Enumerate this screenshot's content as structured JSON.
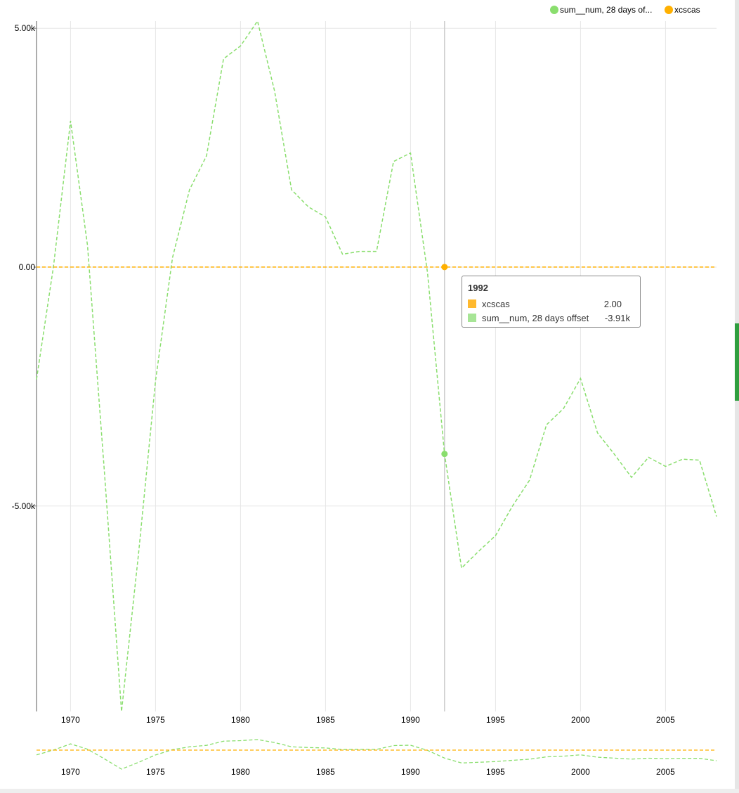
{
  "legend": [
    {
      "label": "sum__num, 28 days of...",
      "color": "#8ade6e",
      "icon": "circle-icon"
    },
    {
      "label": "xcscas",
      "color": "#ffb000",
      "icon": "circle-icon"
    }
  ],
  "tooltip": {
    "title": "1992",
    "rows": [
      {
        "name": "xcscas",
        "value": "2.00",
        "color": "#ffb92e"
      },
      {
        "name": "sum__num, 28 days offset",
        "value": "-3.91k",
        "color": "#a7e596"
      }
    ]
  },
  "chart_data": {
    "type": "line",
    "x": [
      1968,
      1969,
      1970,
      1971,
      1972,
      1973,
      1974,
      1975,
      1976,
      1977,
      1978,
      1979,
      1980,
      1981,
      1982,
      1983,
      1984,
      1985,
      1986,
      1987,
      1988,
      1989,
      1990,
      1991,
      1992,
      1993,
      1994,
      1995,
      1996,
      1997,
      1998,
      1999,
      2000,
      2001,
      2002,
      2003,
      2004,
      2005,
      2006,
      2007,
      2008
    ],
    "series": [
      {
        "name": "sum__num, 28 days offset",
        "color": "#8ade6e",
        "style": "dashed",
        "values": [
          -2350,
          20,
          3060,
          450,
          -4320,
          -9300,
          -6000,
          -2380,
          200,
          1620,
          2330,
          4360,
          4630,
          5150,
          3690,
          1620,
          1260,
          1050,
          270,
          330,
          330,
          2210,
          2390,
          -120,
          -3910,
          -6300,
          -5950,
          -5620,
          -5000,
          -4460,
          -3300,
          -2960,
          -2330,
          -3470,
          -3920,
          -4400,
          -3980,
          -4170,
          -4020,
          -4040,
          -5220
        ]
      },
      {
        "name": "xcscas",
        "color": "#ffb000",
        "style": "dashed",
        "values": [
          2,
          2,
          2,
          2,
          2,
          2,
          2,
          2,
          2,
          2,
          2,
          2,
          2,
          2,
          2,
          2,
          2,
          2,
          2,
          2,
          2,
          2,
          2,
          2,
          2,
          2,
          2,
          2,
          2,
          2,
          2,
          2,
          2,
          2,
          2,
          2,
          2,
          2,
          2,
          2,
          2
        ]
      }
    ],
    "x_ticks": [
      "1970",
      "1975",
      "1980",
      "1985",
      "1990",
      "1995",
      "2000",
      "2005"
    ],
    "y_ticks": [
      {
        "value": 5000,
        "label": "5.00k"
      },
      {
        "value": 0,
        "label": "0.00"
      },
      {
        "value": -5000,
        "label": "-5.00k"
      }
    ],
    "xlim": [
      1968,
      2008
    ],
    "ylim": [
      -9300,
      5150
    ],
    "hover_x": 1992,
    "grid": true,
    "legend_position": "top-right",
    "brush_preview": true
  }
}
